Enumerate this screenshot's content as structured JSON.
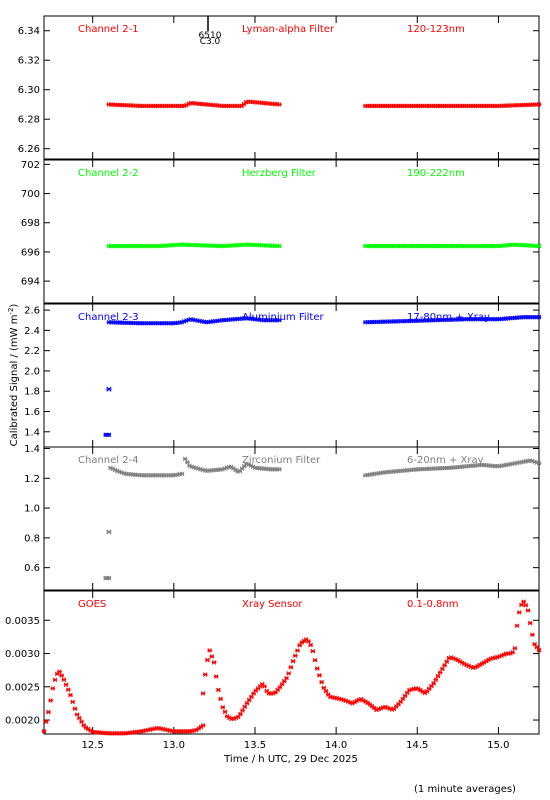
{
  "figure": {
    "ylabel": "Calibrated Signal / (mW m",
    "ylabel_sup": "-2",
    "ylabel_close": ")",
    "xlabel": "Time / h UTC, 29 Dec 2025",
    "footnote": "(1 minute averages)",
    "event_label_top": "6510",
    "event_label_bottom": "C3.0"
  },
  "colors": {
    "red": "#ff0000",
    "green": "#00ff00",
    "blue": "#0000ff",
    "gray": "#808080",
    "axis": "#000000"
  },
  "chart_data": [
    {
      "type": "scatter",
      "channel": "Channel 2-1",
      "filter": "Lyman-alpha Filter",
      "band": "120-123nm",
      "color": "#ff0000",
      "xlim": [
        12.2,
        15.25
      ],
      "ylim": [
        6.253,
        6.35
      ],
      "yticks": [
        6.26,
        6.28,
        6.3,
        6.32,
        6.34
      ],
      "ytick_labels": [
        "6.26",
        "6.28",
        "6.30",
        "6.32",
        "6.34"
      ],
      "segments": [
        {
          "x": [
            12.6,
            12.8,
            13.0,
            13.07,
            13.1,
            13.3,
            13.42,
            13.45,
            13.65
          ],
          "y": [
            6.29,
            6.289,
            6.289,
            6.289,
            6.291,
            6.289,
            6.289,
            6.292,
            6.29
          ]
        },
        {
          "x": [
            14.18,
            14.5,
            14.8,
            15.0,
            15.25
          ],
          "y": [
            6.289,
            6.289,
            6.289,
            6.289,
            6.29
          ]
        }
      ]
    },
    {
      "type": "scatter",
      "channel": "Channel 2-2",
      "filter": "Herzberg Filter",
      "band": "190-222nm",
      "color": "#00ff00",
      "xlim": [
        12.2,
        15.25
      ],
      "ylim": [
        692.5,
        702.3
      ],
      "yticks": [
        694,
        696,
        698,
        700,
        702
      ],
      "ytick_labels": [
        "694",
        "696",
        "698",
        "700",
        "702"
      ],
      "segments": [
        {
          "x": [
            12.6,
            12.9,
            13.05,
            13.3,
            13.45,
            13.65
          ],
          "y": [
            696.4,
            696.4,
            696.5,
            696.4,
            696.5,
            696.4
          ]
        },
        {
          "x": [
            14.18,
            14.5,
            14.8,
            15.0,
            15.1,
            15.25
          ],
          "y": [
            696.4,
            696.4,
            696.4,
            696.4,
            696.5,
            696.4
          ]
        }
      ]
    },
    {
      "type": "scatter",
      "channel": "Channel 2-3",
      "filter": "Aluminium Filter",
      "band": "17-80nm + Xray",
      "color": "#0000ff",
      "xlim": [
        12.2,
        15.25
      ],
      "ylim": [
        1.25,
        2.66
      ],
      "yticks": [
        1.4,
        1.6,
        1.8,
        2.0,
        2.2,
        2.4,
        2.6
      ],
      "ytick_labels": [
        "1.4",
        "1.6",
        "1.8",
        "2.0",
        "2.2",
        "2.4",
        "2.6"
      ],
      "segments": [
        {
          "x": [
            12.58,
            12.59,
            12.6
          ],
          "y": [
            1.37,
            1.37,
            1.37
          ]
        },
        {
          "x": [
            12.6,
            12.8,
            13.0,
            13.05,
            13.1,
            13.2,
            13.3,
            13.45,
            13.55,
            13.65
          ],
          "y": [
            2.48,
            2.47,
            2.47,
            2.48,
            2.51,
            2.48,
            2.5,
            2.52,
            2.5,
            2.5
          ]
        },
        {
          "x": [
            14.18,
            14.4,
            14.6,
            14.8,
            15.0,
            15.15,
            15.25
          ],
          "y": [
            2.48,
            2.49,
            2.5,
            2.51,
            2.51,
            2.53,
            2.53
          ]
        }
      ],
      "points": [
        {
          "x": 12.6,
          "y": 1.82
        }
      ]
    },
    {
      "type": "scatter",
      "channel": "Channel 2-4",
      "filter": "Zirconium Filter",
      "band": "6-20nm + Xray",
      "color": "#808080",
      "xlim": [
        12.2,
        15.25
      ],
      "ylim": [
        0.45,
        1.41
      ],
      "yticks": [
        0.6,
        0.8,
        1.0,
        1.2,
        1.4
      ],
      "ytick_labels": [
        "0.6",
        "0.8",
        "1.0",
        "1.2",
        "1.4"
      ],
      "segments": [
        {
          "x": [
            12.58,
            12.59,
            12.6
          ],
          "y": [
            0.53,
            0.53,
            0.53
          ]
        },
        {
          "x": [
            12.61,
            12.65,
            12.7,
            12.8,
            12.9,
            13.0,
            13.05
          ],
          "y": [
            1.27,
            1.25,
            1.23,
            1.22,
            1.22,
            1.22,
            1.23
          ]
        },
        {
          "x": [
            13.07,
            13.1,
            13.2,
            13.3,
            13.35,
            13.4,
            13.45,
            13.5,
            13.6,
            13.65
          ],
          "y": [
            1.33,
            1.28,
            1.25,
            1.26,
            1.28,
            1.24,
            1.3,
            1.27,
            1.26,
            1.26
          ]
        },
        {
          "x": [
            14.18,
            14.3,
            14.5,
            14.7,
            14.9,
            15.0,
            15.1,
            15.2,
            15.25
          ],
          "y": [
            1.22,
            1.24,
            1.26,
            1.27,
            1.29,
            1.28,
            1.3,
            1.32,
            1.3
          ]
        }
      ],
      "points": [
        {
          "x": 12.6,
          "y": 0.84
        }
      ]
    },
    {
      "type": "scatter",
      "channel": "GOES",
      "filter": "Xray Sensor",
      "band": "0.1-0.8nm",
      "color": "#ff0000",
      "xlim": [
        12.2,
        15.25
      ],
      "ylim": [
        0.00179,
        0.00394
      ],
      "yticks": [
        0.002,
        0.0025,
        0.003,
        0.0035
      ],
      "ytick_labels": [
        "0.0020",
        "0.0025",
        "0.0030",
        "0.0035"
      ],
      "xticks": [
        12.5,
        13.0,
        13.5,
        14.0,
        14.5,
        15.0
      ],
      "xtick_labels": [
        "12.5",
        "13.0",
        "13.5",
        "14.0",
        "14.5",
        "15.0"
      ],
      "segments": [
        {
          "x": [
            12.2,
            12.23,
            12.26,
            12.29,
            12.32,
            12.36,
            12.4,
            12.45,
            12.5,
            12.6,
            12.7,
            12.8,
            12.9,
            13.0,
            13.1,
            13.14,
            13.18
          ],
          "y": [
            0.00183,
            0.00215,
            0.00255,
            0.00275,
            0.00262,
            0.0024,
            0.0021,
            0.0019,
            0.00182,
            0.0018,
            0.0018,
            0.00183,
            0.00188,
            0.00183,
            0.00183,
            0.00185,
            0.00192
          ]
        },
        {
          "x": [
            13.18,
            13.2,
            13.22,
            13.25,
            13.27,
            13.3,
            13.33,
            13.36,
            13.4,
            13.45,
            13.5,
            13.55,
            13.58,
            13.62,
            13.65,
            13.7,
            13.74,
            13.78,
            13.82,
            13.85,
            13.88,
            13.92,
            13.96,
            14.0,
            14.05,
            14.1,
            14.15,
            14.2,
            14.25,
            14.3,
            14.35,
            14.4,
            14.45,
            14.5,
            14.55,
            14.6,
            14.65,
            14.7,
            14.75,
            14.8,
            14.85,
            14.9,
            14.95,
            15.0,
            15.05,
            15.08,
            15.1,
            15.12,
            15.15,
            15.18,
            15.2,
            15.22,
            15.25
          ],
          "y": [
            0.0024,
            0.00282,
            0.00305,
            0.00285,
            0.0025,
            0.0022,
            0.00205,
            0.00201,
            0.00205,
            0.00225,
            0.00243,
            0.00255,
            0.0024,
            0.0024,
            0.00248,
            0.00265,
            0.00292,
            0.00315,
            0.00322,
            0.0031,
            0.0028,
            0.0025,
            0.00235,
            0.00233,
            0.0023,
            0.00225,
            0.00232,
            0.00225,
            0.00215,
            0.0022,
            0.00215,
            0.00228,
            0.00245,
            0.00248,
            0.0024,
            0.00255,
            0.00275,
            0.00295,
            0.0029,
            0.00283,
            0.00278,
            0.00285,
            0.00292,
            0.00295,
            0.003,
            0.003,
            0.00305,
            0.00355,
            0.0038,
            0.00368,
            0.0034,
            0.00315,
            0.00305
          ]
        }
      ]
    }
  ]
}
